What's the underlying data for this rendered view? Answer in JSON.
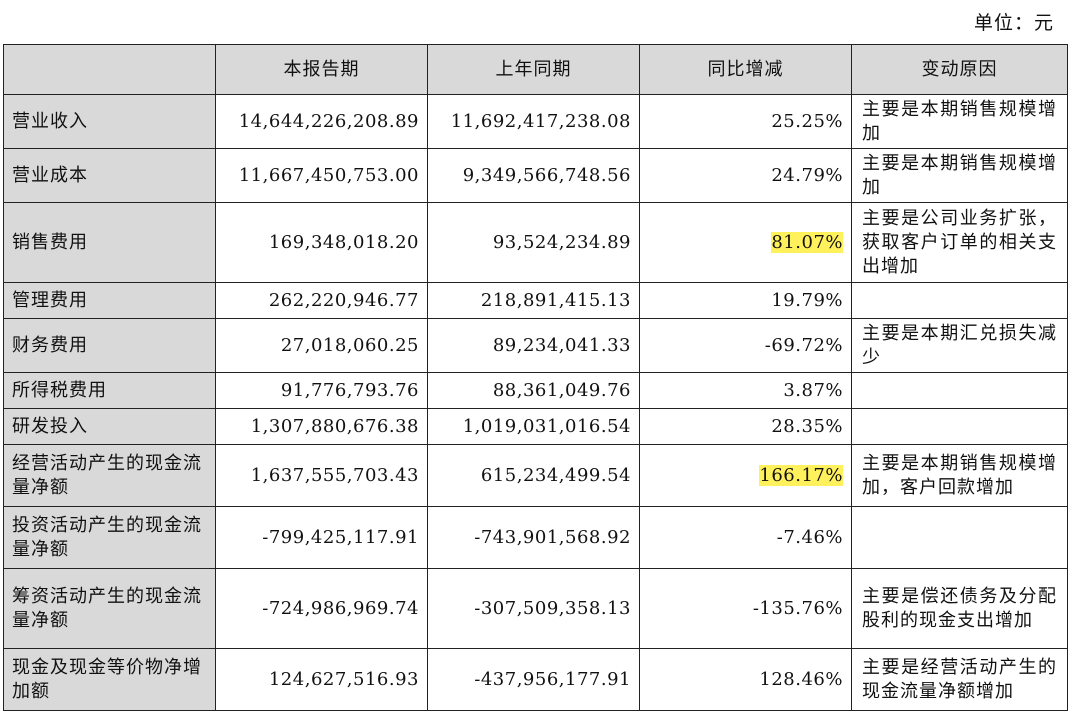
{
  "unit_label": "单位：元",
  "columns": [
    "",
    "本报告期",
    "上年同期",
    "同比增减",
    "变动原因"
  ],
  "highlight_color": "#fff15c",
  "rows": [
    {
      "name": "营业收入",
      "current": "14,644,226,208.89",
      "previous": "11,692,417,238.08",
      "change": "25.25%",
      "reason": "主要是本期销售规模增加",
      "highlight": false,
      "height": 54
    },
    {
      "name": "营业成本",
      "current": "11,667,450,753.00",
      "previous": "9,349,566,748.56",
      "change": "24.79%",
      "reason": "主要是本期销售规模增加",
      "highlight": false,
      "height": 54
    },
    {
      "name": "销售费用",
      "current": "169,348,018.20",
      "previous": "93,524,234.89",
      "change": "81.07%",
      "reason": "主要是公司业务扩张，获取客户订单的相关支出增加",
      "highlight": true,
      "height": 80
    },
    {
      "name": "管理费用",
      "current": "262,220,946.77",
      "previous": "218,891,415.13",
      "change": "19.79%",
      "reason": "",
      "highlight": false,
      "height": 36
    },
    {
      "name": "财务费用",
      "current": "27,018,060.25",
      "previous": "89,234,041.33",
      "change": "-69.72%",
      "reason": "主要是本期汇兑损失减少",
      "highlight": false,
      "height": 54
    },
    {
      "name": "所得税费用",
      "current": "91,776,793.76",
      "previous": "88,361,049.76",
      "change": "3.87%",
      "reason": "",
      "highlight": false,
      "height": 36
    },
    {
      "name": "研发投入",
      "current": "1,307,880,676.38",
      "previous": "1,019,031,016.54",
      "change": "28.35%",
      "reason": "",
      "highlight": false,
      "height": 36
    },
    {
      "name": "经营活动产生的现金流量净额",
      "current": "1,637,555,703.43",
      "previous": "615,234,499.54",
      "change": "166.17%",
      "reason": "主要是本期销售规模增加，客户回款增加",
      "highlight": true,
      "height": 62
    },
    {
      "name": "投资活动产生的现金流量净额",
      "current": "-799,425,117.91",
      "previous": "-743,901,568.92",
      "change": "-7.46%",
      "reason": "",
      "highlight": false,
      "height": 62
    },
    {
      "name": "筹资活动产生的现金流量净额",
      "current": "-724,986,969.74",
      "previous": "-307,509,358.13",
      "change": "-135.76%",
      "reason": "主要是偿还债务及分配股利的现金支出增加",
      "highlight": false,
      "height": 80
    },
    {
      "name": "现金及现金等价物净增加额",
      "current": "124,627,516.93",
      "previous": "-437,956,177.91",
      "change": "128.46%",
      "reason": "主要是经营活动产生的现金流量净额增加",
      "highlight": false,
      "height": 62
    }
  ]
}
